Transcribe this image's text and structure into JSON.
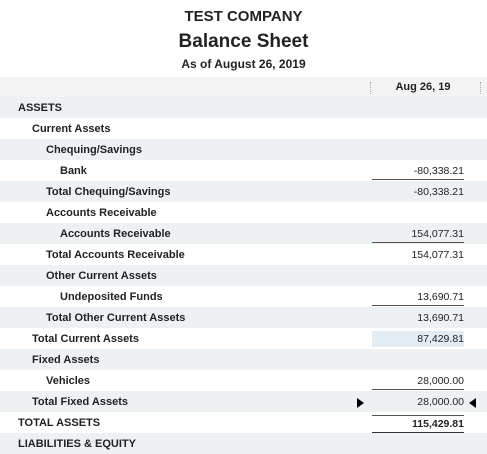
{
  "header": {
    "company": "TEST COMPANY",
    "title": "Balance Sheet",
    "subtitle": "As of August 26, 2019"
  },
  "table": {
    "column": "Aug 26, 19",
    "rows": [
      [
        "ASSETS"
      ],
      [
        "Current Assets"
      ],
      [
        "Chequing/Savings"
      ],
      [
        "Bank",
        "-80,338.21"
      ],
      [
        "Total Chequing/Savings",
        "-80,338.21"
      ],
      [
        "Accounts Receivable"
      ],
      [
        "Accounts Receivable",
        "154,077.31"
      ],
      [
        "Total Accounts Receivable",
        "154,077.31"
      ],
      [
        "Other Current Assets"
      ],
      [
        "Undeposited Funds",
        "13,690.71"
      ],
      [
        "Total Other Current Assets",
        "13,690.71"
      ],
      [
        "Total Current Assets",
        "87,429.81"
      ],
      [
        "Fixed Assets"
      ],
      [
        "Vehicles",
        "28,000.00"
      ],
      [
        "Total Fixed Assets",
        "28,000.00"
      ],
      [
        "TOTAL ASSETS",
        "115,429.81"
      ],
      [
        "LIABILITIES & EQUITY"
      ]
    ]
  }
}
